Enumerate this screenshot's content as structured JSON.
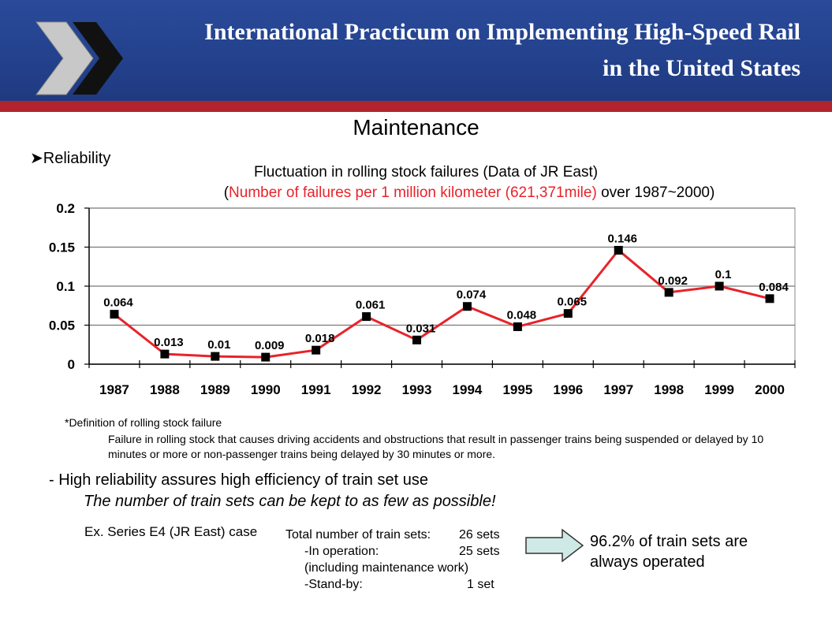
{
  "header": {
    "title_line1": "International Practicum on Implementing High-Speed Rail",
    "title_line2": "in the United States",
    "colors": {
      "banner": "#23418c",
      "stripe": "#b3232e",
      "chevron_dark": "#111111",
      "chevron_light": "#c8c8c8"
    }
  },
  "slide": {
    "title": "Maintenance",
    "bullet": "Reliability"
  },
  "chart_data": {
    "type": "line",
    "title": "Fluctuation in rolling stock failures (Data of JR East)",
    "subtitle_open": "(",
    "subtitle_red": "Number of failures per 1 million kilometer (621,371mile)",
    "subtitle_rest": " over 1987~2000)",
    "categories": [
      "1987",
      "1988",
      "1989",
      "1990",
      "1991",
      "1992",
      "1993",
      "1994",
      "1995",
      "1996",
      "1997",
      "1998",
      "1999",
      "2000"
    ],
    "series": [
      {
        "name": "Failures",
        "color": "#e8232a",
        "values": [
          0.064,
          0.013,
          0.01,
          0.009,
          0.018,
          0.061,
          0.031,
          0.074,
          0.048,
          0.065,
          0.146,
          0.092,
          0.1,
          0.084
        ]
      }
    ],
    "data_labels": [
      "0.064",
      "0.013",
      "0.01",
      "0.009",
      "0.018",
      "0.061",
      "0.031",
      "0.074",
      "0.048",
      "0.065",
      "0.146",
      "0.092",
      "0.1",
      "0.084"
    ],
    "y_ticks": [
      0,
      0.05,
      0.1,
      0.15,
      0.2
    ],
    "y_tick_labels": [
      "0",
      "0.05",
      "0.1",
      "0.15",
      "0.2"
    ],
    "ylim": [
      0,
      0.2
    ],
    "grid": true,
    "xlabel": "",
    "ylabel": ""
  },
  "notes": {
    "definition_head": "*Definition of rolling stock failure",
    "definition_body": "Failure in rolling stock that causes driving accidents and obstructions that result in passenger trains being suspended or delayed by 10 minutes or more or non-passenger trains being delayed by 30 minutes or more."
  },
  "points": {
    "line1": "- High reliability assures high efficiency of train set use",
    "line2": "The number of train sets can be kept to as few as possible!"
  },
  "example": {
    "label": "Ex. Series E4 (JR East) case",
    "total_label": "Total number of train sets:",
    "total_value": "26 sets",
    "op_label": "-In operation:",
    "op_value": "25 sets",
    "op_note": "(including maintenance work)",
    "standby_label": "-Stand-by:",
    "standby_value": "1 set"
  },
  "result": {
    "percent": "96.2%",
    "text1": " of train sets are",
    "text2": "always operated",
    "arrow_color": "#cfeae6"
  }
}
